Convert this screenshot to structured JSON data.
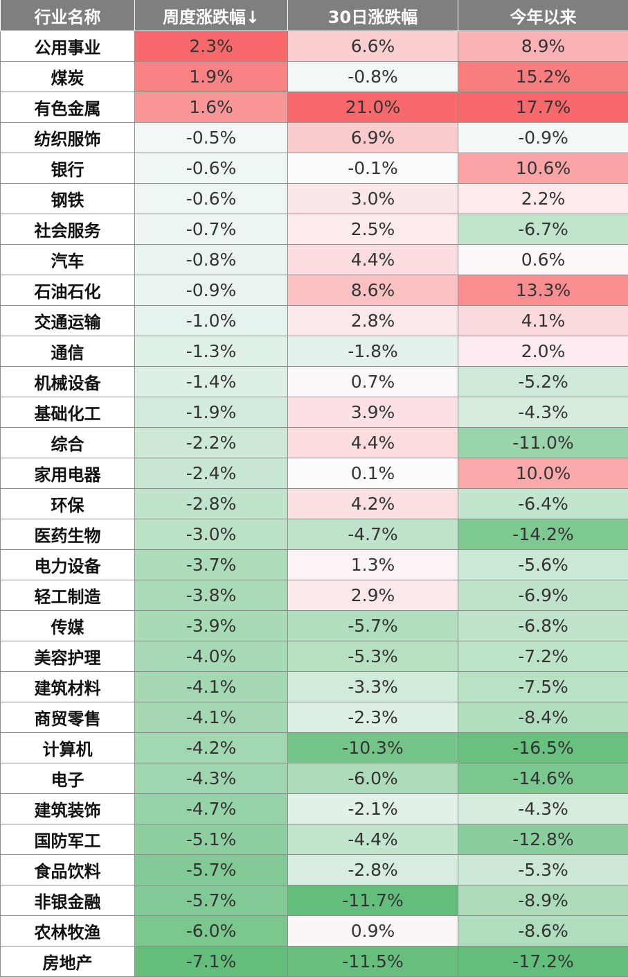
{
  "chart_data": {
    "type": "table",
    "columns": [
      "行业名称",
      "周度涨跌幅↓",
      "30日涨跌幅",
      "今年以来"
    ],
    "rows": [
      {
        "name": "公用事业",
        "week": "2.3%",
        "d30": "6.6%",
        "ytd": "8.9%"
      },
      {
        "name": "煤炭",
        "week": "1.9%",
        "d30": "-0.8%",
        "ytd": "15.2%"
      },
      {
        "name": "有色金属",
        "week": "1.6%",
        "d30": "21.0%",
        "ytd": "17.7%"
      },
      {
        "name": "纺织服饰",
        "week": "-0.5%",
        "d30": "6.9%",
        "ytd": "-0.9%"
      },
      {
        "name": "银行",
        "week": "-0.6%",
        "d30": "-0.1%",
        "ytd": "10.6%"
      },
      {
        "name": "钢铁",
        "week": "-0.6%",
        "d30": "3.0%",
        "ytd": "2.2%"
      },
      {
        "name": "社会服务",
        "week": "-0.7%",
        "d30": "2.5%",
        "ytd": "-6.7%"
      },
      {
        "name": "汽车",
        "week": "-0.8%",
        "d30": "4.4%",
        "ytd": "0.6%"
      },
      {
        "name": "石油石化",
        "week": "-0.9%",
        "d30": "8.6%",
        "ytd": "13.3%"
      },
      {
        "name": "交通运输",
        "week": "-1.0%",
        "d30": "2.8%",
        "ytd": "4.1%"
      },
      {
        "name": "通信",
        "week": "-1.3%",
        "d30": "-1.8%",
        "ytd": "2.0%"
      },
      {
        "name": "机械设备",
        "week": "-1.4%",
        "d30": "0.7%",
        "ytd": "-5.2%"
      },
      {
        "name": "基础化工",
        "week": "-1.9%",
        "d30": "3.9%",
        "ytd": "-4.3%"
      },
      {
        "name": "综合",
        "week": "-2.2%",
        "d30": "4.4%",
        "ytd": "-11.0%"
      },
      {
        "name": "家用电器",
        "week": "-2.4%",
        "d30": "0.1%",
        "ytd": "10.0%"
      },
      {
        "name": "环保",
        "week": "-2.8%",
        "d30": "4.2%",
        "ytd": "-6.4%"
      },
      {
        "name": "医药生物",
        "week": "-3.0%",
        "d30": "-4.7%",
        "ytd": "-14.2%"
      },
      {
        "name": "电力设备",
        "week": "-3.7%",
        "d30": "1.3%",
        "ytd": "-5.6%"
      },
      {
        "name": "轻工制造",
        "week": "-3.8%",
        "d30": "2.9%",
        "ytd": "-6.9%"
      },
      {
        "name": "传媒",
        "week": "-3.9%",
        "d30": "-5.7%",
        "ytd": "-6.8%"
      },
      {
        "name": "美容护理",
        "week": "-4.0%",
        "d30": "-5.3%",
        "ytd": "-7.2%"
      },
      {
        "name": "建筑材料",
        "week": "-4.1%",
        "d30": "-3.3%",
        "ytd": "-7.5%"
      },
      {
        "name": "商贸零售",
        "week": "-4.1%",
        "d30": "-2.3%",
        "ytd": "-8.4%"
      },
      {
        "name": "计算机",
        "week": "-4.2%",
        "d30": "-10.3%",
        "ytd": "-16.5%"
      },
      {
        "name": "电子",
        "week": "-4.3%",
        "d30": "-6.0%",
        "ytd": "-14.6%"
      },
      {
        "name": "建筑装饰",
        "week": "-4.7%",
        "d30": "-2.1%",
        "ytd": "-4.3%"
      },
      {
        "name": "国防军工",
        "week": "-5.1%",
        "d30": "-4.4%",
        "ytd": "-12.8%"
      },
      {
        "name": "食品饮料",
        "week": "-5.7%",
        "d30": "-2.8%",
        "ytd": "-5.3%"
      },
      {
        "name": "非银金融",
        "week": "-5.7%",
        "d30": "-11.7%",
        "ytd": "-8.9%"
      },
      {
        "name": "农林牧渔",
        "week": "-6.0%",
        "d30": "0.9%",
        "ytd": "-8.6%"
      },
      {
        "name": "房地产",
        "week": "-7.1%",
        "d30": "-11.5%",
        "ytd": "-17.2%"
      }
    ],
    "colors": {
      "header_bg": "#7f7f7f",
      "positive_max": "#f8696b",
      "neutral": "#fcfcff",
      "negative_max": "#63be7b"
    }
  }
}
